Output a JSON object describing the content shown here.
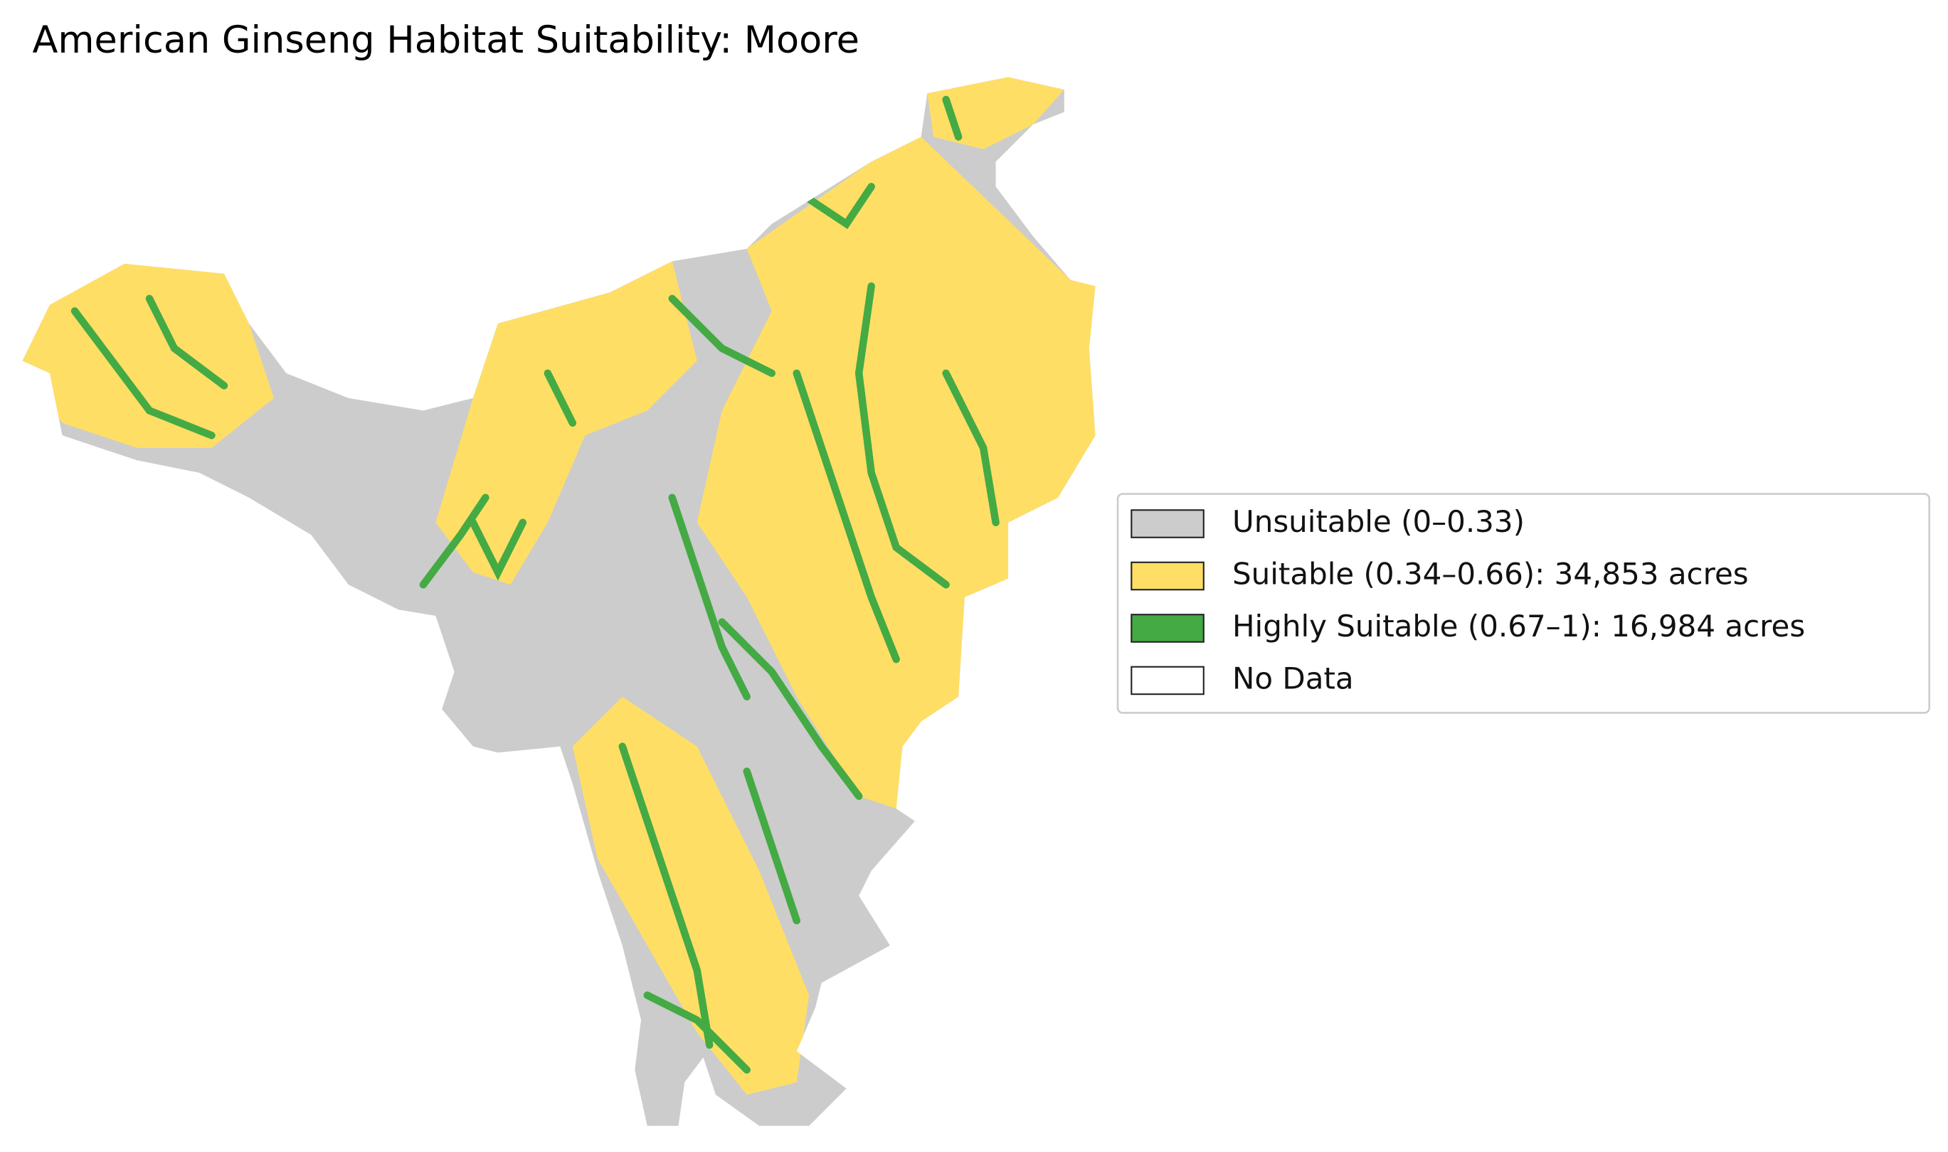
{
  "title": "American Ginseng Habitat Suitability: Moore",
  "legend": {
    "items": [
      {
        "label": "Unsuitable (0–0.33)",
        "color": "#cccccc"
      },
      {
        "label": "Suitable (0.34–0.66): 34,853 acres",
        "color": "#ffde66"
      },
      {
        "label": "Highly Suitable (0.67–1): 16,984 acres",
        "color": "#44aa44"
      },
      {
        "label": "No Data",
        "color": "#ffffff"
      }
    ]
  }
}
